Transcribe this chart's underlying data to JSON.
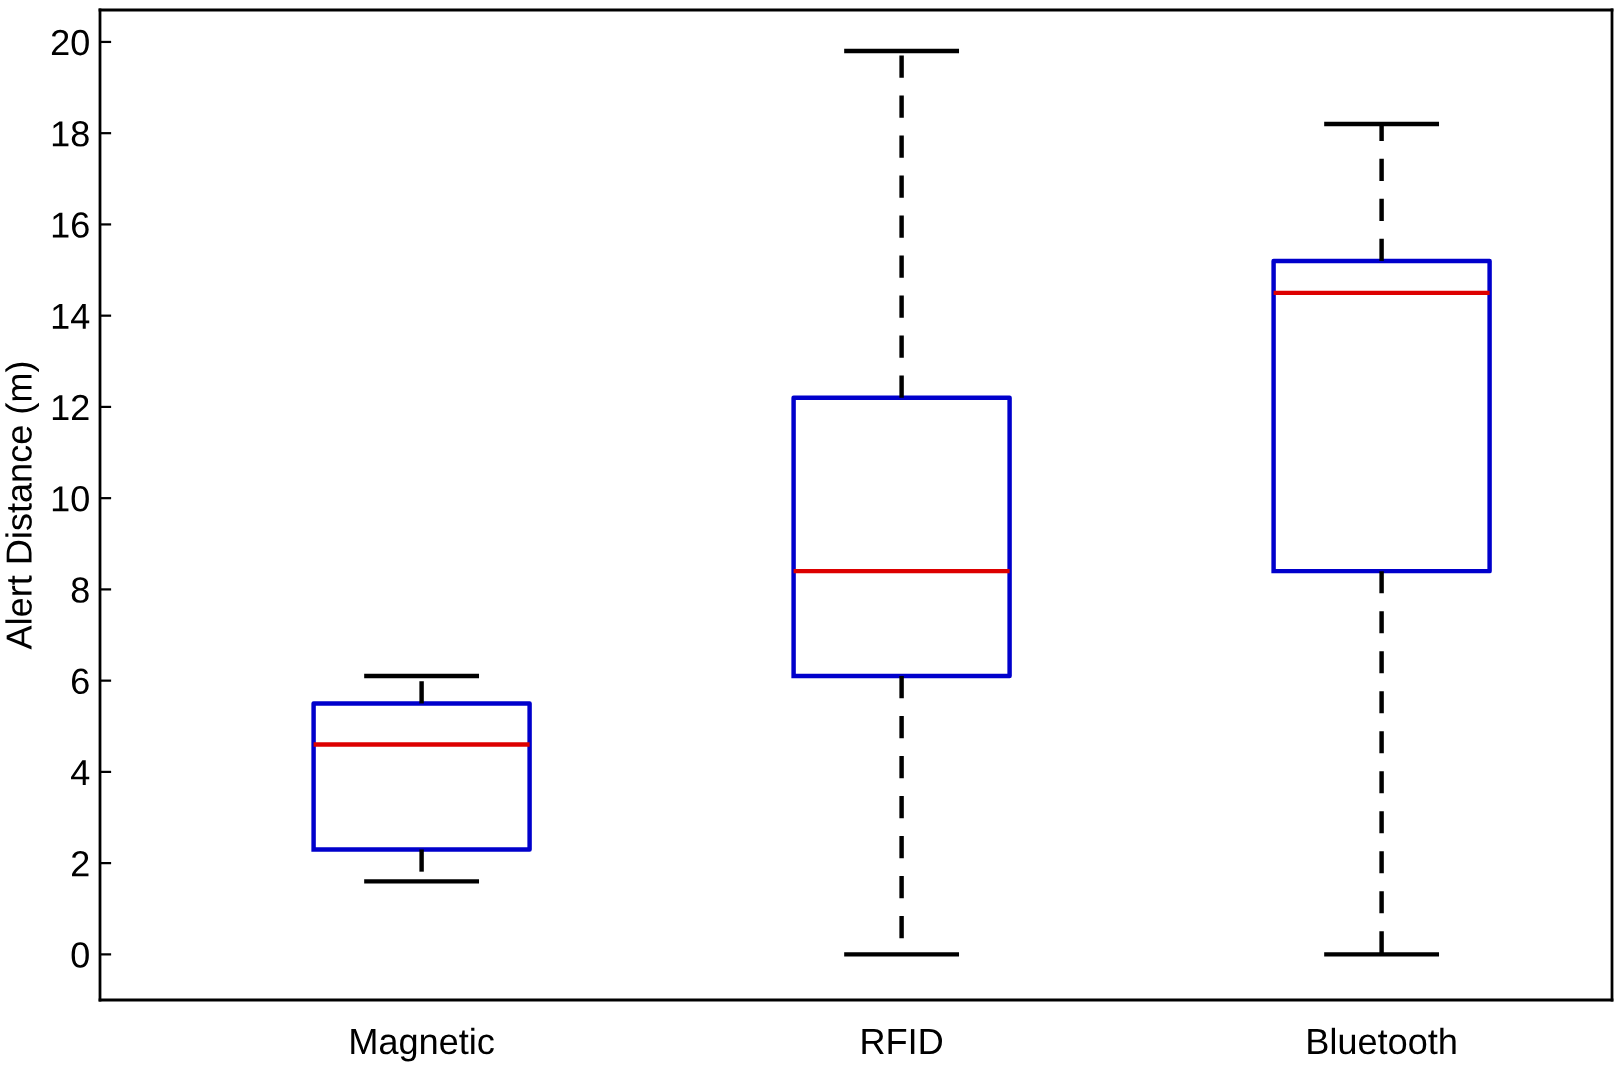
{
  "chart_data": {
    "type": "box",
    "ylabel": "Alert Distance (m)",
    "categories": [
      "Magnetic",
      "RFID",
      "Bluetooth"
    ],
    "series": [
      {
        "color": "#0000cc",
        "boxes": [
          {
            "low": 1.6,
            "q1": 2.3,
            "median": 4.6,
            "q3": 5.5,
            "high": 6.1
          },
          {
            "low": 0,
            "q1": 6.1,
            "median": 8.4,
            "q3": 12.2,
            "high": 19.8
          },
          {
            "low": 0,
            "q1": 8.4,
            "median": 14.5,
            "q3": 15.2,
            "high": 18.2
          }
        ]
      }
    ],
    "ylim": [
      -1,
      20.7
    ],
    "yticks": [
      0,
      2,
      4,
      6,
      8,
      10,
      12,
      14,
      16,
      18,
      20
    ],
    "line_style": "dashed",
    "grid": false
  }
}
